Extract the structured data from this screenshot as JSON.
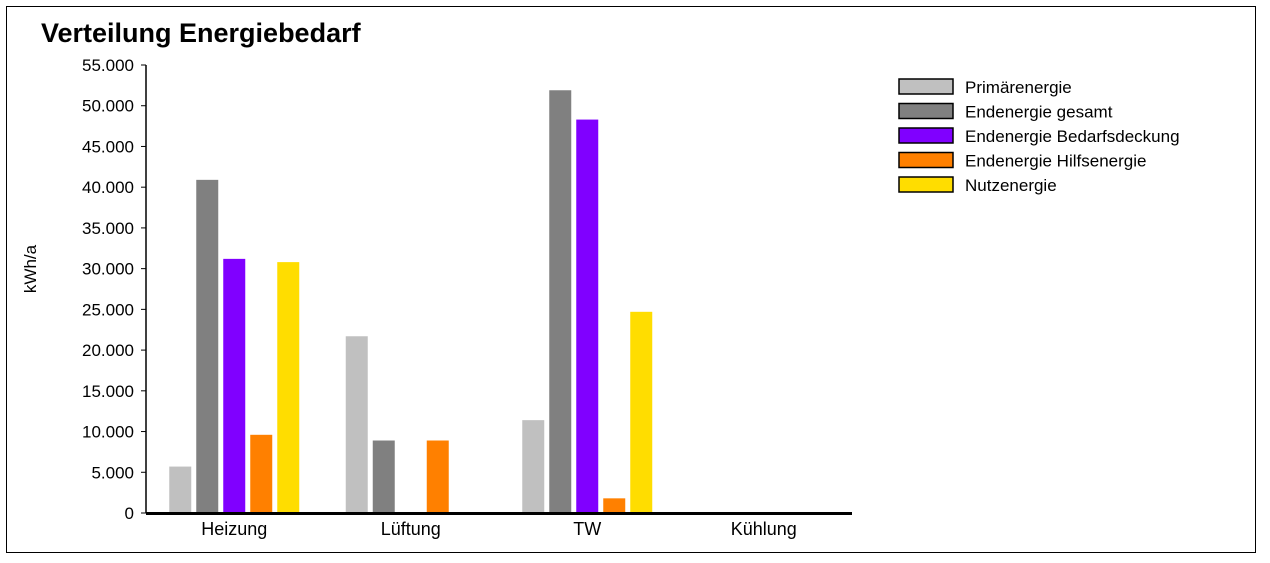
{
  "chart_data": {
    "type": "bar",
    "title": "Verteilung Energiebedarf",
    "ylabel": "kWh/a",
    "xlabel": "",
    "ylim": [
      0,
      55000
    ],
    "yticks": [
      0,
      5000,
      10000,
      15000,
      20000,
      25000,
      30000,
      35000,
      40000,
      45000,
      50000,
      55000
    ],
    "ytick_labels": [
      "0",
      "5.000",
      "10.000",
      "15.000",
      "20.000",
      "25.000",
      "30.000",
      "35.000",
      "40.000",
      "45.000",
      "50.000",
      "55.000"
    ],
    "categories": [
      "Heizung",
      "Lüftung",
      "TW",
      "Kühlung"
    ],
    "legend_position": "top-right",
    "grid": false,
    "series": [
      {
        "name": "Primärenergie",
        "color": "#c0c0c0",
        "values": [
          5700,
          21700,
          11400,
          0
        ]
      },
      {
        "name": "Endenergie gesamt",
        "color": "#808080",
        "values": [
          40900,
          8900,
          51900,
          0
        ]
      },
      {
        "name": "Endenergie Bedarfsdeckung",
        "color": "#8000ff",
        "values": [
          31200,
          0,
          48300,
          0
        ]
      },
      {
        "name": "Endenergie Hilfsenergie",
        "color": "#ff8000",
        "values": [
          9600,
          8900,
          1800,
          0
        ]
      },
      {
        "name": "Nutzenergie",
        "color": "#ffdd00",
        "values": [
          30800,
          0,
          24700,
          0
        ]
      }
    ]
  }
}
